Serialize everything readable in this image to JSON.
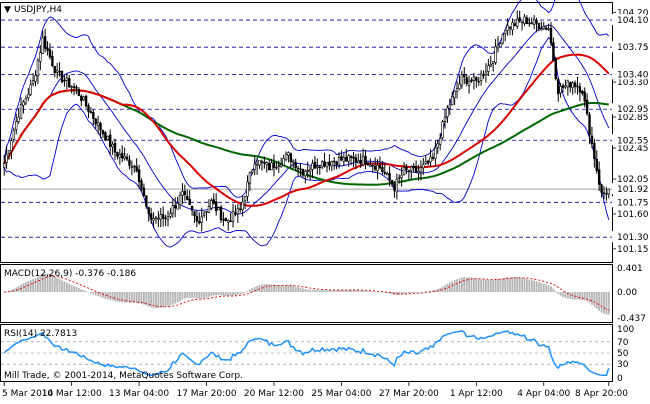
{
  "title": "USDJPY,H4",
  "menu_arrow": "▼",
  "copyright": "Mill Trade, © 2001-2014, MetaQuotes Software Corp.",
  "price_axis": {
    "labels": [
      "104.20",
      "103.75",
      "103.30",
      "102.85",
      "102.45",
      "102.05",
      "101.60",
      "101.15"
    ],
    "levels": [
      104.2,
      103.75,
      103.3,
      102.85,
      102.45,
      102.05,
      101.6,
      101.15
    ],
    "range": [
      100.98,
      104.32
    ]
  },
  "current_price": {
    "label": "101.92",
    "value": 101.92
  },
  "horizontal_levels": {
    "labels": [
      "104.10",
      "103.75",
      "103.40",
      "102.95",
      "102.55",
      "101.75",
      "101.30"
    ],
    "values": [
      104.1,
      103.75,
      103.4,
      102.95,
      102.55,
      101.75,
      101.3
    ]
  },
  "time_axis": [
    "5 Mar 2014",
    "10 Mar 12:00",
    "13 Mar 04:00",
    "17 Mar 20:00",
    "20 Mar 12:00",
    "25 Mar 04:00",
    "27 Mar 20:00",
    "1 Apr 12:00",
    "4 Apr 04:00",
    "8 Apr 20:00"
  ],
  "macd": {
    "label": "MACD(12,26,9) -0.376 -0.186",
    "axis_labels": [
      "0.401",
      "0.00",
      "-0.437"
    ],
    "axis_values": [
      0.401,
      0.0,
      -0.437
    ],
    "range": [
      -0.5,
      0.45
    ]
  },
  "rsi": {
    "label": "RSI(14) 22.7813",
    "axis_labels": [
      "100",
      "70",
      "50",
      "30",
      "0"
    ],
    "axis_values": [
      100,
      70,
      50,
      30,
      0
    ]
  },
  "colors": {
    "candles": "#000000",
    "bollinger": "#0000cc",
    "ma_fast": "#dd0000",
    "ma_slow": "#006600",
    "macd_hist": "#b4b4b4",
    "macd_signal": "#dd0000",
    "rsi_line": "#1e90ff",
    "level_lines": "#000099"
  },
  "chart_data": {
    "type": "candlestick",
    "symbol": "USDJPY",
    "timeframe": "H4",
    "close_keypoints": [
      [
        0,
        102.25
      ],
      [
        6,
        102.9
      ],
      [
        12,
        103.3
      ],
      [
        16,
        103.85
      ],
      [
        22,
        103.4
      ],
      [
        30,
        103.2
      ],
      [
        38,
        102.8
      ],
      [
        46,
        102.4
      ],
      [
        55,
        102.2
      ],
      [
        60,
        101.55
      ],
      [
        67,
        101.55
      ],
      [
        74,
        101.85
      ],
      [
        80,
        101.5
      ],
      [
        86,
        101.75
      ],
      [
        92,
        101.5
      ],
      [
        98,
        101.65
      ],
      [
        104,
        102.3
      ],
      [
        110,
        102.2
      ],
      [
        118,
        102.35
      ],
      [
        124,
        102.15
      ],
      [
        130,
        102.25
      ],
      [
        140,
        102.3
      ],
      [
        150,
        102.3
      ],
      [
        156,
        102.2
      ],
      [
        162,
        101.95
      ],
      [
        166,
        102.15
      ],
      [
        172,
        102.15
      ],
      [
        178,
        102.3
      ],
      [
        184,
        102.95
      ],
      [
        190,
        103.35
      ],
      [
        196,
        103.3
      ],
      [
        202,
        103.55
      ],
      [
        208,
        104.0
      ],
      [
        216,
        104.1
      ],
      [
        226,
        104.0
      ],
      [
        230,
        103.2
      ],
      [
        236,
        103.3
      ],
      [
        240,
        103.2
      ],
      [
        244,
        102.5
      ],
      [
        248,
        101.85
      ],
      [
        251,
        101.92
      ]
    ],
    "indicators": [
      "Bollinger Bands",
      "Moving Average (fast)",
      "Moving Average (slow)",
      "MACD(12,26,9)",
      "RSI(14)"
    ]
  }
}
